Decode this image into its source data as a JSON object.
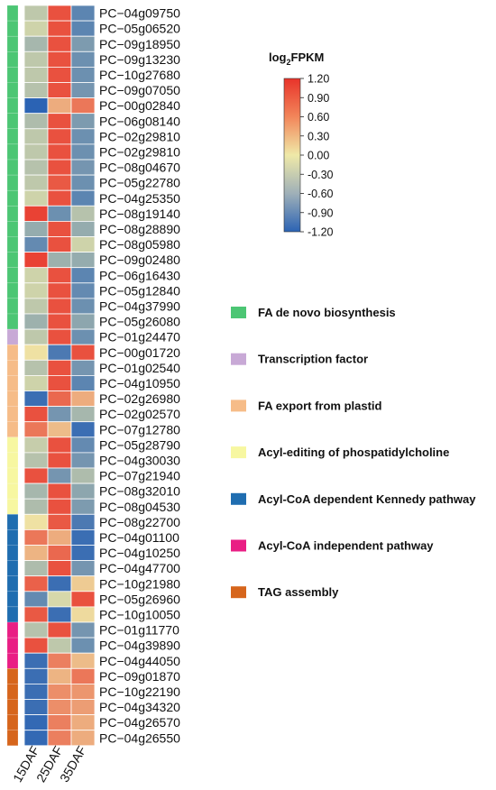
{
  "chart_data": {
    "type": "heatmap",
    "columns": [
      "15DAF",
      "25DAF",
      "35DAF"
    ],
    "color_scale": {
      "title_main": "log",
      "title_sub": "2",
      "title_rest": "FPKM",
      "min": -1.2,
      "max": 1.2,
      "ticks": [
        "1.20",
        "0.90",
        "0.60",
        "0.30",
        "0.00",
        "-0.30",
        "-0.60",
        "-0.90",
        "-1.20"
      ],
      "colors": [
        "#2b63b4",
        "#efe9a8",
        "#e8332a"
      ]
    },
    "groups": [
      {
        "name": "FA de novo biosynthesis",
        "color": "#4cc674",
        "count": 21
      },
      {
        "name": "Transcription factor",
        "color": "#c8a9d6",
        "count": 1
      },
      {
        "name": "FA export from plastid",
        "color": "#f6bc88",
        "count": 6
      },
      {
        "name": "Acyl-editing of phospatidylcholine",
        "color": "#f7f7a1",
        "count": 5
      },
      {
        "name": "Acyl-CoA dependent Kennedy pathway",
        "color": "#1f6db0",
        "count": 7
      },
      {
        "name": "Acyl-CoA independent pathway",
        "color": "#e91e84",
        "count": 3
      },
      {
        "name": "TAG assembly",
        "color": "#d6651c",
        "count": 5
      }
    ],
    "rows": [
      {
        "gene": "PC−04g09750",
        "values": [
          -0.3,
          1.0,
          -0.9
        ]
      },
      {
        "gene": "PC−05g06520",
        "values": [
          -0.2,
          1.0,
          -0.9
        ]
      },
      {
        "gene": "PC−09g18950",
        "values": [
          -0.45,
          1.0,
          -0.7
        ]
      },
      {
        "gene": "PC−09g13230",
        "values": [
          -0.3,
          1.0,
          -0.8
        ]
      },
      {
        "gene": "PC−10g27680",
        "values": [
          -0.3,
          1.0,
          -0.8
        ]
      },
      {
        "gene": "PC−09g07050",
        "values": [
          -0.35,
          1.0,
          -0.75
        ]
      },
      {
        "gene": "PC−00g02840",
        "values": [
          -1.2,
          0.4,
          0.75
        ]
      },
      {
        "gene": "PC−06g08140",
        "values": [
          -0.4,
          1.0,
          -0.7
        ]
      },
      {
        "gene": "PC−02g29810",
        "values": [
          -0.3,
          1.0,
          -0.8
        ]
      },
      {
        "gene": "PC−02g29810",
        "values": [
          -0.3,
          1.0,
          -0.8
        ]
      },
      {
        "gene": "PC−08g04670",
        "values": [
          -0.35,
          1.0,
          -0.75
        ]
      },
      {
        "gene": "PC−05g22780",
        "values": [
          -0.3,
          0.95,
          -0.8
        ]
      },
      {
        "gene": "PC−04g25350",
        "values": [
          -0.2,
          1.0,
          -0.9
        ]
      },
      {
        "gene": "PC−08g19140",
        "values": [
          1.1,
          -0.8,
          -0.35
        ]
      },
      {
        "gene": "PC−08g28890",
        "values": [
          -0.55,
          1.0,
          -0.55
        ]
      },
      {
        "gene": "PC−08g05980",
        "values": [
          -0.85,
          1.0,
          -0.2
        ]
      },
      {
        "gene": "PC−09g02480",
        "values": [
          1.1,
          -0.5,
          -0.55
        ]
      },
      {
        "gene": "PC−06g16430",
        "values": [
          -0.2,
          1.0,
          -0.9
        ]
      },
      {
        "gene": "PC−05g12840",
        "values": [
          -0.2,
          1.0,
          -0.85
        ]
      },
      {
        "gene": "PC−04g37990",
        "values": [
          -0.3,
          1.0,
          -0.8
        ]
      },
      {
        "gene": "PC−05g26080",
        "values": [
          -0.5,
          1.0,
          -0.6
        ]
      },
      {
        "gene": "PC−01g24470",
        "values": [
          -0.3,
          1.0,
          -0.8
        ]
      },
      {
        "gene": "PC−00g01720",
        "values": [
          0.05,
          -1.0,
          1.0
        ]
      },
      {
        "gene": "PC−01g02540",
        "values": [
          -0.35,
          1.0,
          -0.75
        ]
      },
      {
        "gene": "PC−04g10950",
        "values": [
          -0.2,
          1.0,
          -0.9
        ]
      },
      {
        "gene": "PC−02g26980",
        "values": [
          -1.1,
          0.85,
          0.4
        ]
      },
      {
        "gene": "PC−02g02570",
        "values": [
          1.0,
          -0.75,
          -0.45
        ]
      },
      {
        "gene": "PC−07g12780",
        "values": [
          0.75,
          0.3,
          -1.1
        ]
      },
      {
        "gene": "PC−05g28790",
        "values": [
          -0.25,
          1.0,
          -0.85
        ]
      },
      {
        "gene": "PC−04g30030",
        "values": [
          -0.35,
          1.0,
          -0.75
        ]
      },
      {
        "gene": "PC−07g21940",
        "values": [
          1.0,
          -0.75,
          -0.4
        ]
      },
      {
        "gene": "PC−08g32010",
        "values": [
          -0.45,
          1.0,
          -0.6
        ]
      },
      {
        "gene": "PC−08g04530",
        "values": [
          -0.4,
          1.0,
          -0.7
        ]
      },
      {
        "gene": "PC−08g22700",
        "values": [
          0.05,
          0.95,
          -1.0
        ]
      },
      {
        "gene": "PC−04g01100",
        "values": [
          0.75,
          0.4,
          -1.1
        ]
      },
      {
        "gene": "PC−04g10250",
        "values": [
          0.35,
          0.85,
          -1.1
        ]
      },
      {
        "gene": "PC−04g47700",
        "values": [
          -0.4,
          1.0,
          -0.75
        ]
      },
      {
        "gene": "PC−10g21980",
        "values": [
          0.9,
          -1.1,
          0.2
        ]
      },
      {
        "gene": "PC−05g26960",
        "values": [
          -0.85,
          -0.15,
          1.0
        ]
      },
      {
        "gene": "PC−10g10050",
        "values": [
          0.95,
          -1.1,
          0.1
        ]
      },
      {
        "gene": "PC−01g11770",
        "values": [
          -0.35,
          1.0,
          -0.75
        ]
      },
      {
        "gene": "PC−04g39890",
        "values": [
          1.0,
          -0.3,
          -0.8
        ]
      },
      {
        "gene": "PC−04g44050",
        "values": [
          -1.1,
          0.7,
          0.3
        ]
      },
      {
        "gene": "PC−09g01870",
        "values": [
          -1.1,
          0.35,
          0.75
        ]
      },
      {
        "gene": "PC−10g22190",
        "values": [
          -1.1,
          0.6,
          0.55
        ]
      },
      {
        "gene": "PC−04g34320",
        "values": [
          -1.1,
          0.6,
          0.5
        ]
      },
      {
        "gene": "PC−04g26570",
        "values": [
          -1.15,
          0.7,
          0.4
        ]
      },
      {
        "gene": "PC−04g26550",
        "values": [
          -1.15,
          0.7,
          0.4
        ]
      }
    ]
  }
}
